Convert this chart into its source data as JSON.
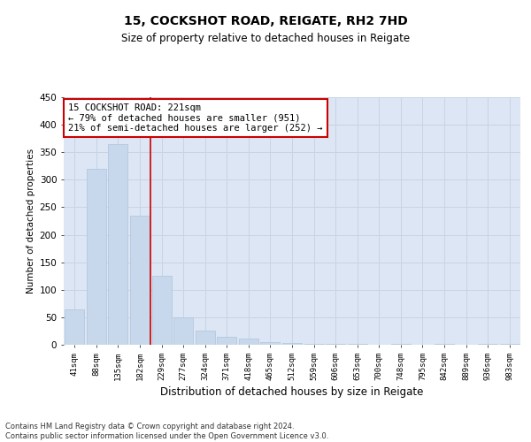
{
  "title1": "15, COCKSHOT ROAD, REIGATE, RH2 7HD",
  "title2": "Size of property relative to detached houses in Reigate",
  "xlabel": "Distribution of detached houses by size in Reigate",
  "ylabel": "Number of detached properties",
  "categories": [
    "41sqm",
    "88sqm",
    "135sqm",
    "182sqm",
    "229sqm",
    "277sqm",
    "324sqm",
    "371sqm",
    "418sqm",
    "465sqm",
    "512sqm",
    "559sqm",
    "606sqm",
    "653sqm",
    "700sqm",
    "748sqm",
    "795sqm",
    "842sqm",
    "889sqm",
    "936sqm",
    "983sqm"
  ],
  "values": [
    65,
    320,
    365,
    235,
    125,
    50,
    25,
    15,
    12,
    5,
    3,
    1,
    1,
    1,
    0,
    1,
    0,
    1,
    0,
    1,
    1
  ],
  "bar_color": "#c8d8ec",
  "bar_edge_color": "#b0c4dc",
  "vline_x_index": 3.5,
  "vline_color": "#cc0000",
  "annotation_text": "15 COCKSHOT ROAD: 221sqm\n← 79% of detached houses are smaller (951)\n21% of semi-detached houses are larger (252) →",
  "annotation_box_color": "#ffffff",
  "annotation_box_edge": "#cc0000",
  "grid_color": "#c8d4e4",
  "bg_color": "#dce6f4",
  "footnote": "Contains HM Land Registry data © Crown copyright and database right 2024.\nContains public sector information licensed under the Open Government Licence v3.0.",
  "ylim": [
    0,
    450
  ],
  "yticks": [
    0,
    50,
    100,
    150,
    200,
    250,
    300,
    350,
    400,
    450
  ],
  "title1_fontsize": 10,
  "title2_fontsize": 8.5
}
